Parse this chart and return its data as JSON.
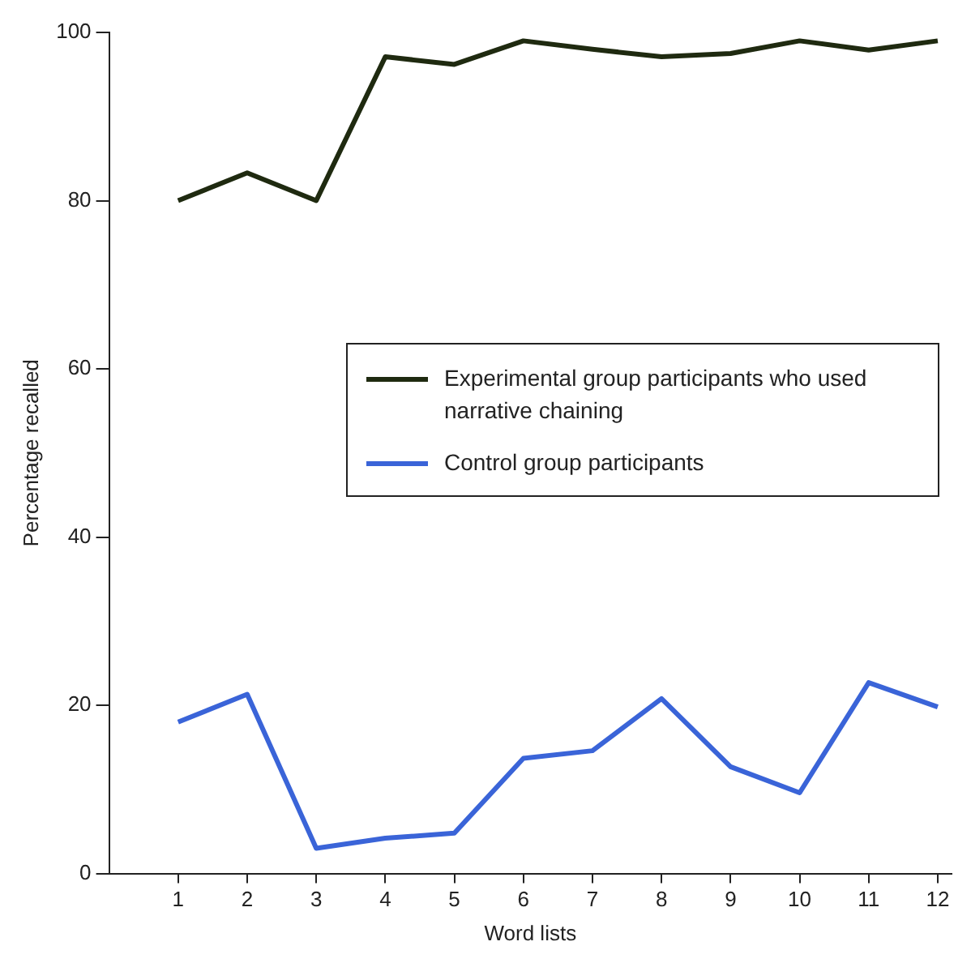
{
  "chart_data": {
    "type": "line",
    "xlabel": "Word lists",
    "ylabel": "Percentage recalled",
    "x": [
      1,
      2,
      3,
      4,
      5,
      6,
      7,
      8,
      9,
      10,
      11,
      12
    ],
    "xlim": [
      0,
      12.2
    ],
    "xticks": [
      1,
      2,
      3,
      4,
      5,
      6,
      7,
      8,
      9,
      10,
      11,
      12
    ],
    "ylim": [
      0,
      100
    ],
    "yticks": [
      0,
      20,
      40,
      60,
      80,
      100
    ],
    "grid": false,
    "legend": "center right",
    "marker": "none",
    "line_style": "solid",
    "series": [
      {
        "name": "Experimental group participants who used narrative chaining",
        "color": "#1f2a10",
        "values": [
          80,
          83.3,
          80,
          97.1,
          96.2,
          99,
          98,
          97.1,
          97.5,
          99,
          97.9,
          99
        ]
      },
      {
        "name": "Control group participants",
        "color": "#3a64d8",
        "values": [
          18,
          21.3,
          3,
          4.2,
          4.8,
          13.7,
          14.6,
          20.8,
          12.7,
          9.6,
          22.7,
          19.8
        ]
      }
    ]
  }
}
